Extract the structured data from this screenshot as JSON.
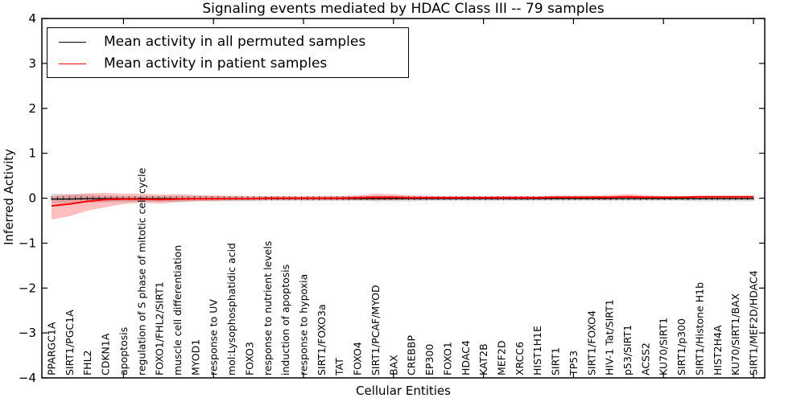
{
  "title": "Signaling events mediated by HDAC Class III -- 79 samples",
  "legend": {
    "items": [
      {
        "label": "Mean activity in all permuted samples",
        "color": "#000000"
      },
      {
        "label": "Mean activity in patient samples",
        "color": "#ff0000"
      }
    ]
  },
  "chart_data": {
    "type": "line",
    "title": "Signaling events mediated by HDAC Class III -- 79 samples",
    "xlabel": "Cellular Entities",
    "ylabel": "Inferred Activity",
    "ylim": [
      -4,
      4
    ],
    "yticks": [
      -4,
      -3,
      -2,
      -1,
      0,
      1,
      2,
      3,
      4
    ],
    "ytick_labels": [
      "−4",
      "−3",
      "−2",
      "−1",
      "0",
      "1",
      "2",
      "3",
      "4"
    ],
    "xtick_indices": [
      4,
      9,
      14,
      19,
      24,
      29,
      34,
      39
    ],
    "grid": false,
    "legend_position": "upper left",
    "categories": [
      "PPARGC1A",
      "SIRT1/PGC1A",
      "FHL2",
      "CDKN1A",
      "apoptosis",
      "regulation of S phase of mitotic cell cycle",
      "FOXO1/FHL2/SIRT1",
      "muscle cell differentiation",
      "MYOD1",
      "response to UV",
      "mol:Lysophosphatidic acid",
      "FOXO3",
      "response to nutrient levels",
      "induction of apoptosis",
      "response to hypoxia",
      "SIRT1/FOXO3a",
      "TAT",
      "FOXO4",
      "SIRT1/PCAF/MYOD",
      "BAX",
      "CREBBP",
      "EP300",
      "FOXO1",
      "HDAC4",
      "KAT2B",
      "MEF2D",
      "XRCC6",
      "HIST1H1E",
      "SIRT1",
      "TP53",
      "SIRT1/FOXO4",
      "HIV-1 Tat/SIRT1",
      "p53/SIRT1",
      "ACSS2",
      "KU70/SIRT1",
      "SIRT1/p300",
      "SIRT1/Histone H1b",
      "HIST2H4A",
      "KU70/SIRT1/BAX",
      "SIRT1/MEF2D/HDAC4"
    ],
    "series": [
      {
        "name": "Mean activity in all permuted samples",
        "color": "#000000",
        "values": [
          -0.02,
          -0.02,
          -0.01,
          -0.01,
          -0.01,
          -0.01,
          -0.01,
          -0.01,
          -0.01,
          -0.01,
          -0.01,
          -0.01,
          -0.01,
          -0.01,
          -0.01,
          -0.01,
          -0.01,
          -0.01,
          -0.01,
          -0.01,
          -0.01,
          -0.01,
          -0.01,
          -0.01,
          -0.01,
          -0.01,
          -0.01,
          -0.01,
          -0.01,
          -0.01,
          -0.01,
          -0.01,
          -0.01,
          -0.01,
          -0.01,
          -0.01,
          -0.01,
          -0.01,
          -0.01,
          -0.01
        ]
      },
      {
        "name": "Mean activity in patient samples",
        "color": "#ff0000",
        "values": [
          -0.17,
          -0.13,
          -0.07,
          -0.03,
          -0.02,
          -0.02,
          -0.03,
          -0.02,
          -0.01,
          -0.01,
          -0.01,
          -0.01,
          0.0,
          0.0,
          0.0,
          0.0,
          0.0,
          0.01,
          0.02,
          0.02,
          0.01,
          0.01,
          0.01,
          0.01,
          0.01,
          0.01,
          0.01,
          0.01,
          0.02,
          0.02,
          0.02,
          0.02,
          0.03,
          0.02,
          0.02,
          0.02,
          0.03,
          0.03,
          0.03,
          0.03
        ]
      }
    ],
    "bands": [
      {
        "name": "permuted-range",
        "color": "#000000",
        "opacity": 0.15,
        "upper": [
          0.1,
          0.09,
          0.08,
          0.06,
          0.05,
          0.05,
          0.05,
          0.05,
          0.05,
          0.05,
          0.05,
          0.04,
          0.04,
          0.04,
          0.04,
          0.04,
          0.04,
          0.04,
          0.05,
          0.05,
          0.04,
          0.04,
          0.04,
          0.04,
          0.04,
          0.04,
          0.04,
          0.04,
          0.04,
          0.04,
          0.04,
          0.04,
          0.04,
          0.04,
          0.04,
          0.04,
          0.05,
          0.05,
          0.05,
          0.05
        ],
        "lower": [
          -0.12,
          -0.11,
          -0.1,
          -0.09,
          -0.08,
          -0.08,
          -0.08,
          -0.08,
          -0.07,
          -0.07,
          -0.07,
          -0.07,
          -0.06,
          -0.06,
          -0.06,
          -0.06,
          -0.06,
          -0.06,
          -0.07,
          -0.07,
          -0.07,
          -0.06,
          -0.06,
          -0.06,
          -0.06,
          -0.06,
          -0.06,
          -0.06,
          -0.06,
          -0.06,
          -0.06,
          -0.06,
          -0.06,
          -0.06,
          -0.06,
          -0.06,
          -0.07,
          -0.07,
          -0.07,
          -0.07
        ]
      },
      {
        "name": "patient-range",
        "color": "#ff0000",
        "opacity": 0.25,
        "upper": [
          0.04,
          0.08,
          0.11,
          0.12,
          0.1,
          0.1,
          0.08,
          0.09,
          0.07,
          0.06,
          0.05,
          0.05,
          0.04,
          0.04,
          0.04,
          0.05,
          0.05,
          0.06,
          0.1,
          0.09,
          0.06,
          0.05,
          0.04,
          0.04,
          0.04,
          0.05,
          0.05,
          0.04,
          0.06,
          0.06,
          0.06,
          0.07,
          0.09,
          0.07,
          0.05,
          0.05,
          0.05,
          0.05,
          0.05,
          0.05
        ],
        "lower": [
          -0.48,
          -0.4,
          -0.28,
          -0.2,
          -0.13,
          -0.1,
          -0.12,
          -0.09,
          -0.07,
          -0.06,
          -0.05,
          -0.05,
          -0.04,
          -0.04,
          -0.04,
          -0.04,
          -0.04,
          -0.04,
          -0.05,
          -0.04,
          -0.03,
          -0.03,
          -0.03,
          -0.03,
          -0.03,
          -0.03,
          -0.03,
          -0.03,
          -0.02,
          -0.02,
          -0.02,
          -0.02,
          -0.02,
          -0.02,
          -0.02,
          -0.02,
          -0.02,
          -0.02,
          -0.02,
          -0.02
        ]
      }
    ]
  }
}
